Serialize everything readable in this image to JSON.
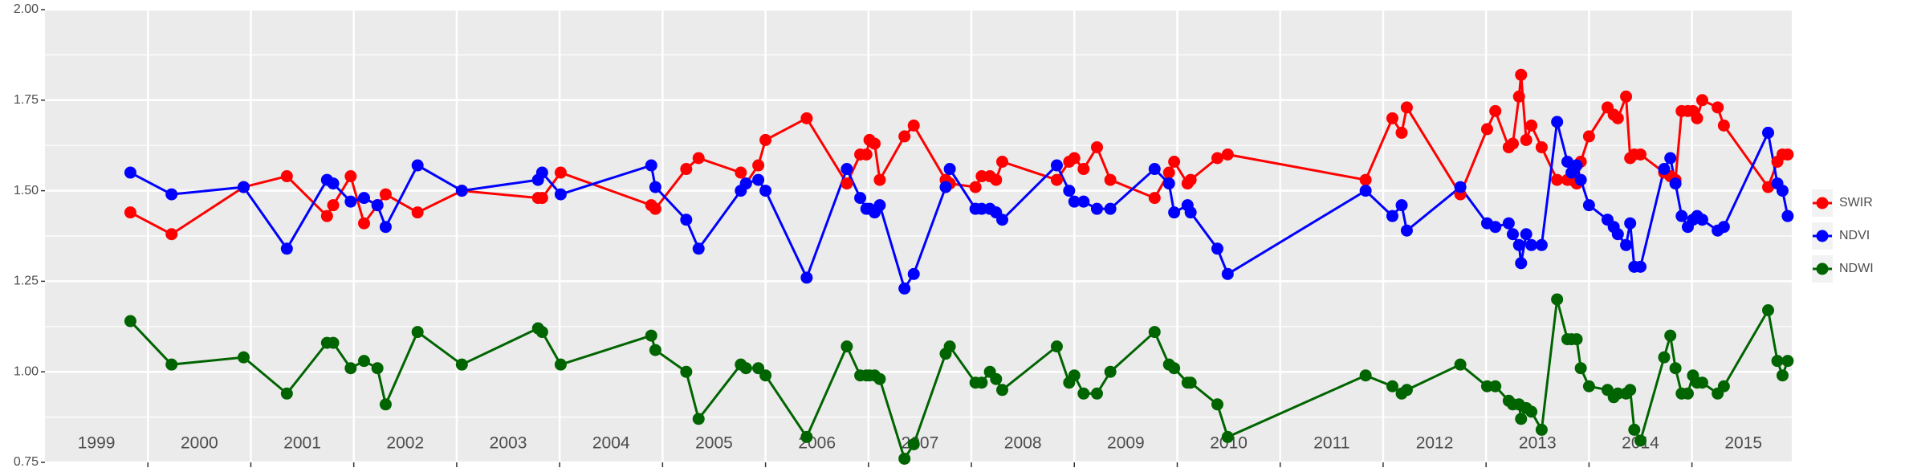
{
  "chart_data": {
    "type": "line",
    "x": [
      1999.83,
      2000.23,
      2000.93,
      2001.35,
      2001.74,
      2001.8,
      2001.97,
      2002.1,
      2002.23,
      2002.31,
      2002.62,
      2003.05,
      2003.79,
      2003.83,
      2004.01,
      2004.89,
      2004.93,
      2005.23,
      2005.35,
      2005.76,
      2005.81,
      2005.93,
      2006.0,
      2006.4,
      2006.79,
      2006.92,
      2006.98,
      2007.01,
      2007.06,
      2007.11,
      2007.35,
      2007.44,
      2007.75,
      2007.79,
      2008.04,
      2008.1,
      2008.18,
      2008.24,
      2008.3,
      2008.83,
      2008.95,
      2009.0,
      2009.09,
      2009.22,
      2009.35,
      2009.78,
      2009.92,
      2009.97,
      2010.1,
      2010.13,
      2010.39,
      2010.49,
      2011.83,
      2012.09,
      2012.18,
      2012.23,
      2012.75,
      2013.01,
      2013.09,
      2013.22,
      2013.26,
      2013.32,
      2013.34,
      2013.39,
      2013.44,
      2013.54,
      2013.69,
      2013.79,
      2013.83,
      2013.88,
      2013.92,
      2014.0,
      2014.18,
      2014.24,
      2014.28,
      2014.36,
      2014.4,
      2014.44,
      2014.5,
      2014.73,
      2014.79,
      2014.84,
      2014.9,
      2014.96,
      2015.01,
      2015.05,
      2015.1,
      2015.25,
      2015.31,
      2015.74,
      2015.83,
      2015.88,
      2015.93
    ],
    "series": [
      {
        "name": "SWIR",
        "color": "#ff0000",
        "values": [
          1.44,
          1.38,
          1.51,
          1.54,
          1.43,
          1.46,
          1.54,
          1.41,
          1.46,
          1.49,
          1.44,
          1.5,
          1.48,
          1.48,
          1.55,
          1.46,
          1.45,
          1.56,
          1.59,
          1.55,
          1.52,
          1.57,
          1.64,
          1.7,
          1.52,
          1.6,
          1.6,
          1.64,
          1.63,
          1.53,
          1.65,
          1.68,
          1.53,
          1.52,
          1.51,
          1.54,
          1.54,
          1.53,
          1.58,
          1.53,
          1.58,
          1.59,
          1.56,
          1.62,
          1.53,
          1.48,
          1.55,
          1.58,
          1.52,
          1.53,
          1.59,
          1.6,
          1.53,
          1.7,
          1.66,
          1.73,
          1.49,
          1.67,
          1.72,
          1.62,
          1.63,
          1.76,
          1.82,
          1.64,
          1.68,
          1.62,
          1.53,
          1.53,
          1.53,
          1.52,
          1.58,
          1.65,
          1.73,
          1.71,
          1.7,
          1.76,
          1.59,
          1.6,
          1.6,
          1.55,
          1.54,
          1.53,
          1.72,
          1.72,
          1.72,
          1.7,
          1.75,
          1.73,
          1.68,
          1.51,
          1.58,
          1.6,
          1.6
        ]
      },
      {
        "name": "NDVI",
        "color": "#0000ff",
        "values": [
          1.55,
          1.49,
          1.51,
          1.34,
          1.53,
          1.52,
          1.47,
          1.48,
          1.46,
          1.4,
          1.57,
          1.5,
          1.53,
          1.55,
          1.49,
          1.57,
          1.51,
          1.42,
          1.34,
          1.5,
          1.52,
          1.53,
          1.5,
          1.26,
          1.56,
          1.48,
          1.45,
          1.45,
          1.44,
          1.46,
          1.23,
          1.27,
          1.51,
          1.56,
          1.45,
          1.45,
          1.45,
          1.44,
          1.42,
          1.57,
          1.5,
          1.47,
          1.47,
          1.45,
          1.45,
          1.56,
          1.52,
          1.44,
          1.46,
          1.44,
          1.34,
          1.27,
          1.5,
          1.43,
          1.46,
          1.39,
          1.51,
          1.41,
          1.4,
          1.41,
          1.38,
          1.35,
          1.3,
          1.38,
          1.35,
          1.35,
          1.69,
          1.58,
          1.55,
          1.57,
          1.53,
          1.46,
          1.42,
          1.4,
          1.38,
          1.35,
          1.41,
          1.29,
          1.29,
          1.56,
          1.59,
          1.52,
          1.43,
          1.4,
          1.42,
          1.43,
          1.42,
          1.39,
          1.4,
          1.66,
          1.52,
          1.5,
          1.43
        ]
      },
      {
        "name": "NDWI",
        "color": "#006400",
        "values": [
          1.14,
          1.02,
          1.04,
          0.94,
          1.08,
          1.08,
          1.01,
          1.03,
          1.01,
          0.91,
          1.11,
          1.02,
          1.12,
          1.11,
          1.02,
          1.1,
          1.06,
          1.0,
          0.87,
          1.02,
          1.01,
          1.01,
          0.99,
          0.82,
          1.07,
          0.99,
          0.99,
          0.99,
          0.99,
          0.98,
          0.76,
          0.8,
          1.05,
          1.07,
          0.97,
          0.97,
          1.0,
          0.98,
          0.95,
          1.07,
          0.97,
          0.99,
          0.94,
          0.94,
          1.0,
          1.11,
          1.02,
          1.01,
          0.97,
          0.97,
          0.91,
          0.82,
          0.99,
          0.96,
          0.94,
          0.95,
          1.02,
          0.96,
          0.96,
          0.92,
          0.91,
          0.91,
          0.87,
          0.9,
          0.89,
          0.84,
          1.2,
          1.09,
          1.09,
          1.09,
          1.01,
          0.96,
          0.95,
          0.93,
          0.94,
          0.94,
          0.95,
          0.84,
          0.81,
          1.04,
          1.1,
          1.01,
          0.94,
          0.94,
          0.99,
          0.97,
          0.97,
          0.94,
          0.96,
          1.17,
          1.03,
          0.99,
          1.03
        ]
      }
    ],
    "xlim": [
      1999.0,
      2015.97
    ],
    "xticks": [
      2000,
      2001,
      2002,
      2003,
      2004,
      2005,
      2006,
      2007,
      2008,
      2009,
      2010,
      2011,
      2012,
      2013,
      2014,
      2015
    ],
    "ylim": [
      0.75,
      2.0
    ],
    "yticks": [
      0.75,
      {
        "value": 1,
        "label": "1.00"
      },
      1.25,
      {
        "value": 1.5,
        "label": "1.50"
      },
      1.75,
      {
        "value": 2,
        "label": "2.00"
      }
    ],
    "year_labels": [
      {
        "label": "1999",
        "x": 1999.5
      },
      {
        "label": "2000",
        "x": 2000.5
      },
      {
        "label": "2001",
        "x": 2001.5
      },
      {
        "label": "2002",
        "x": 2002.5
      },
      {
        "label": "2003",
        "x": 2003.5
      },
      {
        "label": "2004",
        "x": 2004.5
      },
      {
        "label": "2005",
        "x": 2005.5
      },
      {
        "label": "2006",
        "x": 2006.5
      },
      {
        "label": "2007",
        "x": 2007.5
      },
      {
        "label": "2008",
        "x": 2008.5
      },
      {
        "label": "2009",
        "x": 2009.5
      },
      {
        "label": "2010",
        "x": 2010.5
      },
      {
        "label": "2011",
        "x": 2011.5
      },
      {
        "label": "2012",
        "x": 2012.5
      },
      {
        "label": "2013",
        "x": 2013.5
      },
      {
        "label": "2014",
        "x": 2014.5
      },
      {
        "label": "2015",
        "x": 2015.5
      }
    ],
    "grid": true,
    "legend": "right"
  }
}
